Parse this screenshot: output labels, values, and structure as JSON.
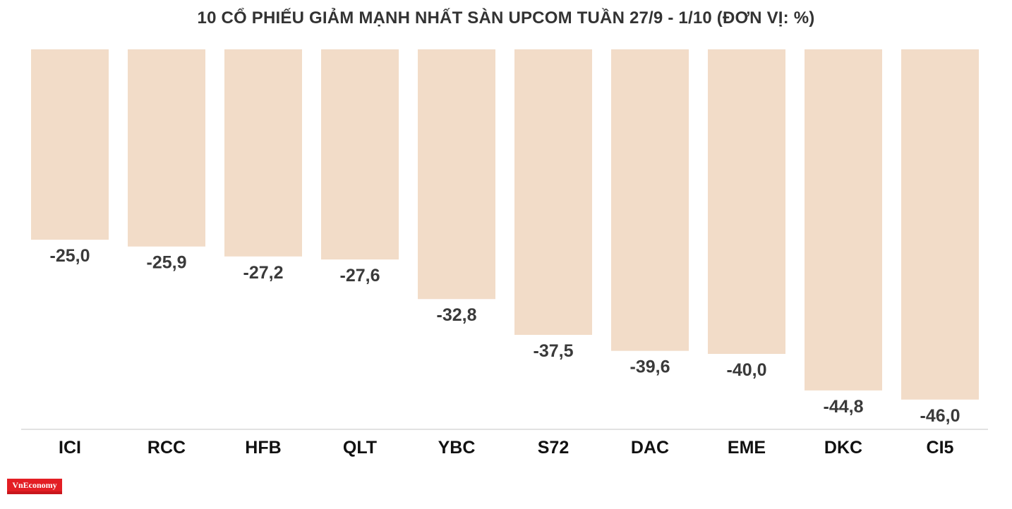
{
  "logo_text": "VnEconomy",
  "chart_data": {
    "type": "bar",
    "title": "10 CỔ PHIẾU GIẢM MẠNH NHẤT SÀN UPCOM TUẦN 27/9 - 1/10 (ĐƠN VỊ: %)",
    "categories": [
      "ICI",
      "RCC",
      "HFB",
      "QLT",
      "YBC",
      "S72",
      "DAC",
      "EME",
      "DKC",
      "CI5"
    ],
    "values": [
      -25.0,
      -25.9,
      -27.2,
      -27.6,
      -32.8,
      -37.5,
      -39.6,
      -40.0,
      -44.8,
      -46.0
    ],
    "value_labels": [
      "-25,0",
      "-25,9",
      "-27,2",
      "-27,6",
      "-32,8",
      "-37,5",
      "-39,6",
      "-40,0",
      "-44,8",
      "-46,0"
    ],
    "bar_color": "#f2dcc8",
    "axis_color": "#d9d9d9",
    "ylim": [
      -50,
      0
    ],
    "grid": false,
    "legend": "none"
  }
}
